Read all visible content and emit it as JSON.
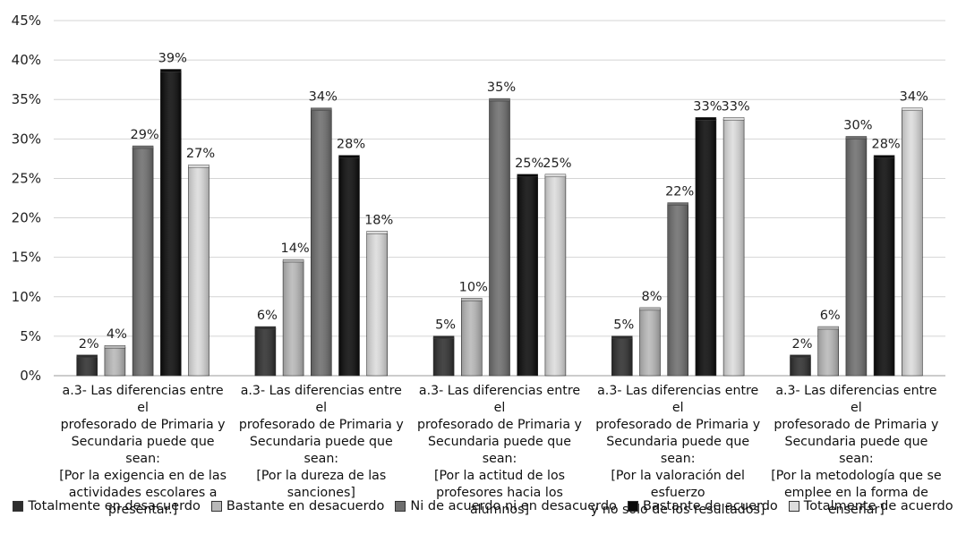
{
  "chart_data": {
    "type": "bar",
    "title": "",
    "xlabel": "",
    "ylabel": "",
    "ylim": [
      0,
      45
    ],
    "yticks": [
      "0%",
      "5%",
      "10%",
      "15%",
      "20%",
      "25%",
      "30%",
      "35%",
      "40%",
      "45%"
    ],
    "grid": true,
    "legend_position": "bottom",
    "categories": [
      [
        "a.3- Las diferencias entre el",
        "profesorado de Primaria y",
        "Secundaria puede que sean:",
        "[Por la exigencia en de las",
        "actividades escolares a",
        "presentar.]"
      ],
      [
        "a.3- Las diferencias entre el",
        "profesorado de Primaria y",
        "Secundaria puede que sean:",
        "[Por la dureza de las",
        "sanciones]"
      ],
      [
        "a.3- Las diferencias entre el",
        "profesorado de Primaria y",
        "Secundaria puede que sean:",
        "[Por la actitud de los",
        "profesores hacia los alumnos]"
      ],
      [
        "a.3- Las diferencias entre el",
        "profesorado de Primaria y",
        "Secundaria puede que sean:",
        "[Por la valoración del esfuerzo",
        "y no sólo de los resultados]"
      ],
      [
        "a.3- Las diferencias entre el",
        "profesorado de Primaria y",
        "Secundaria puede que sean:",
        "[Por  la metodología que se",
        "emplee en la forma de",
        "enseñar]"
      ]
    ],
    "series": [
      {
        "name": "Totalmente en desacuerdo",
        "color": "#2e2e2e",
        "values": [
          2.4,
          6.0,
          4.8,
          4.8,
          2.4
        ],
        "labels": [
          "2%",
          "6%",
          "5%",
          "5%",
          "2%"
        ]
      },
      {
        "name": "Bastante en desacuerdo",
        "color": "#b8b8b8",
        "values": [
          3.6,
          14.5,
          9.6,
          8.4,
          6.0
        ],
        "labels": [
          "4%",
          "14%",
          "10%",
          "8%",
          "6%"
        ]
      },
      {
        "name": "Ni de acuerdo ni en desacuerdo",
        "color": "#6e6e6e",
        "values": [
          28.9,
          33.7,
          34.9,
          21.7,
          30.1
        ],
        "labels": [
          "29%",
          "34%",
          "35%",
          "22%",
          "30%"
        ]
      },
      {
        "name": "Bastante de acuerdo",
        "color": "#0a0a0a",
        "values": [
          38.6,
          27.7,
          25.3,
          32.5,
          27.7
        ],
        "labels": [
          "39%",
          "28%",
          "25%",
          "33%",
          "28%"
        ]
      },
      {
        "name": "Totalmente de acuerdo",
        "color": "#dcdcdc",
        "values": [
          26.5,
          18.1,
          25.3,
          32.5,
          33.7
        ],
        "labels": [
          "27%",
          "18%",
          "25%",
          "33%",
          "34%"
        ]
      }
    ]
  }
}
